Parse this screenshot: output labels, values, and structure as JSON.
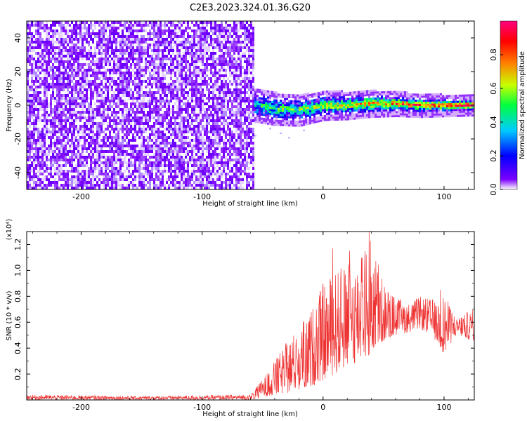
{
  "title": "C2E3.2023.324.01.36.G20",
  "chart_data": [
    {
      "type": "heatmap",
      "xlabel": "Height of straight line (km)",
      "ylabel": "Frequency (Hz)",
      "xlim": [
        -245,
        125
      ],
      "ylim": [
        -50,
        50
      ],
      "xticks": [
        -200,
        -100,
        0,
        100
      ],
      "xtick_labels": [
        "-200",
        "-100",
        "0",
        "100"
      ],
      "yticks": [
        -40,
        -20,
        0,
        20,
        40
      ],
      "ytick_labels": [
        "-40",
        "-20",
        "0",
        "20",
        "40"
      ],
      "colorbar": {
        "label": "Normalized spectral amplitude",
        "range": [
          0,
          1
        ],
        "ticks": [
          0,
          0.2,
          0.4,
          0.6,
          0.8
        ],
        "tick_labels": [
          "0.0",
          "0.2",
          "0.4",
          "0.6",
          "0.8"
        ],
        "colormap": [
          "#ffffff",
          "#7b00ff",
          "#0000ff",
          "#00ccff",
          "#00ff40",
          "#c8ff00",
          "#ff8000",
          "#ff0000",
          "#ff0080"
        ]
      },
      "regions": [
        {
          "x_range": [
            -245,
            -57
          ],
          "freq_range": [
            -50,
            50
          ],
          "amplitude_range": [
            0.02,
            0.15
          ]
        },
        {
          "x_range": [
            -57,
            125
          ],
          "freq_center": 0,
          "amplitude_range": [
            0.3,
            1.0
          ]
        }
      ],
      "ridge": [
        {
          "x": -55,
          "freq": 0
        },
        {
          "x": -40,
          "freq": -2
        },
        {
          "x": -20,
          "freq": -3
        },
        {
          "x": 0,
          "freq": 0
        },
        {
          "x": 20,
          "freq": 0
        },
        {
          "x": 40,
          "freq": 1
        },
        {
          "x": 60,
          "freq": 1
        },
        {
          "x": 80,
          "freq": 0
        },
        {
          "x": 100,
          "freq": 0
        },
        {
          "x": 125,
          "freq": 0
        }
      ]
    },
    {
      "type": "line",
      "xlabel": "Height of straight line (km)",
      "ylabel": "SNR (10 * v/v)",
      "multiplier_label": "(x10⁴)",
      "xlim": [
        -245,
        125
      ],
      "ylim": [
        0,
        1.3
      ],
      "xticks": [
        -200,
        -100,
        0,
        100
      ],
      "xtick_labels": [
        "-200",
        "-100",
        "0",
        "100"
      ],
      "yticks": [
        0.2,
        0.4,
        0.6,
        0.8,
        1.0,
        1.2
      ],
      "ytick_labels": [
        "0.2",
        "0.4",
        "0.6",
        "0.8",
        "1.0",
        "1.2"
      ],
      "color": "#ee3333",
      "series": [
        {
          "envelope": [
            {
              "x": -245,
              "low": 0.0,
              "high": 0.04
            },
            {
              "x": -150,
              "low": 0.0,
              "high": 0.03
            },
            {
              "x": -60,
              "low": 0.0,
              "high": 0.04
            },
            {
              "x": -50,
              "low": 0.02,
              "high": 0.16
            },
            {
              "x": -40,
              "low": 0.04,
              "high": 0.3
            },
            {
              "x": -30,
              "low": 0.05,
              "high": 0.45
            },
            {
              "x": -20,
              "low": 0.08,
              "high": 0.55
            },
            {
              "x": -10,
              "low": 0.1,
              "high": 0.7
            },
            {
              "x": 0,
              "low": 0.15,
              "high": 0.9
            },
            {
              "x": 10,
              "low": 0.2,
              "high": 1.0
            },
            {
              "x": 20,
              "low": 0.25,
              "high": 1.05
            },
            {
              "x": 30,
              "low": 0.3,
              "high": 1.1
            },
            {
              "x": 40,
              "low": 0.35,
              "high": 1.25
            },
            {
              "x": 50,
              "low": 0.45,
              "high": 0.9
            },
            {
              "x": 60,
              "low": 0.5,
              "high": 0.8
            },
            {
              "x": 70,
              "low": 0.52,
              "high": 0.75
            },
            {
              "x": 80,
              "low": 0.55,
              "high": 0.8
            },
            {
              "x": 90,
              "low": 0.5,
              "high": 0.78
            },
            {
              "x": 100,
              "low": 0.35,
              "high": 0.82
            },
            {
              "x": 110,
              "low": 0.5,
              "high": 0.65
            },
            {
              "x": 125,
              "low": 0.45,
              "high": 0.7
            }
          ],
          "peaks": [
            {
              "x": 8,
              "y": 1.17
            },
            {
              "x": 22,
              "y": 1.15
            },
            {
              "x": 38,
              "y": 1.3
            },
            {
              "x": 97,
              "y": 0.85
            }
          ]
        }
      ]
    }
  ]
}
